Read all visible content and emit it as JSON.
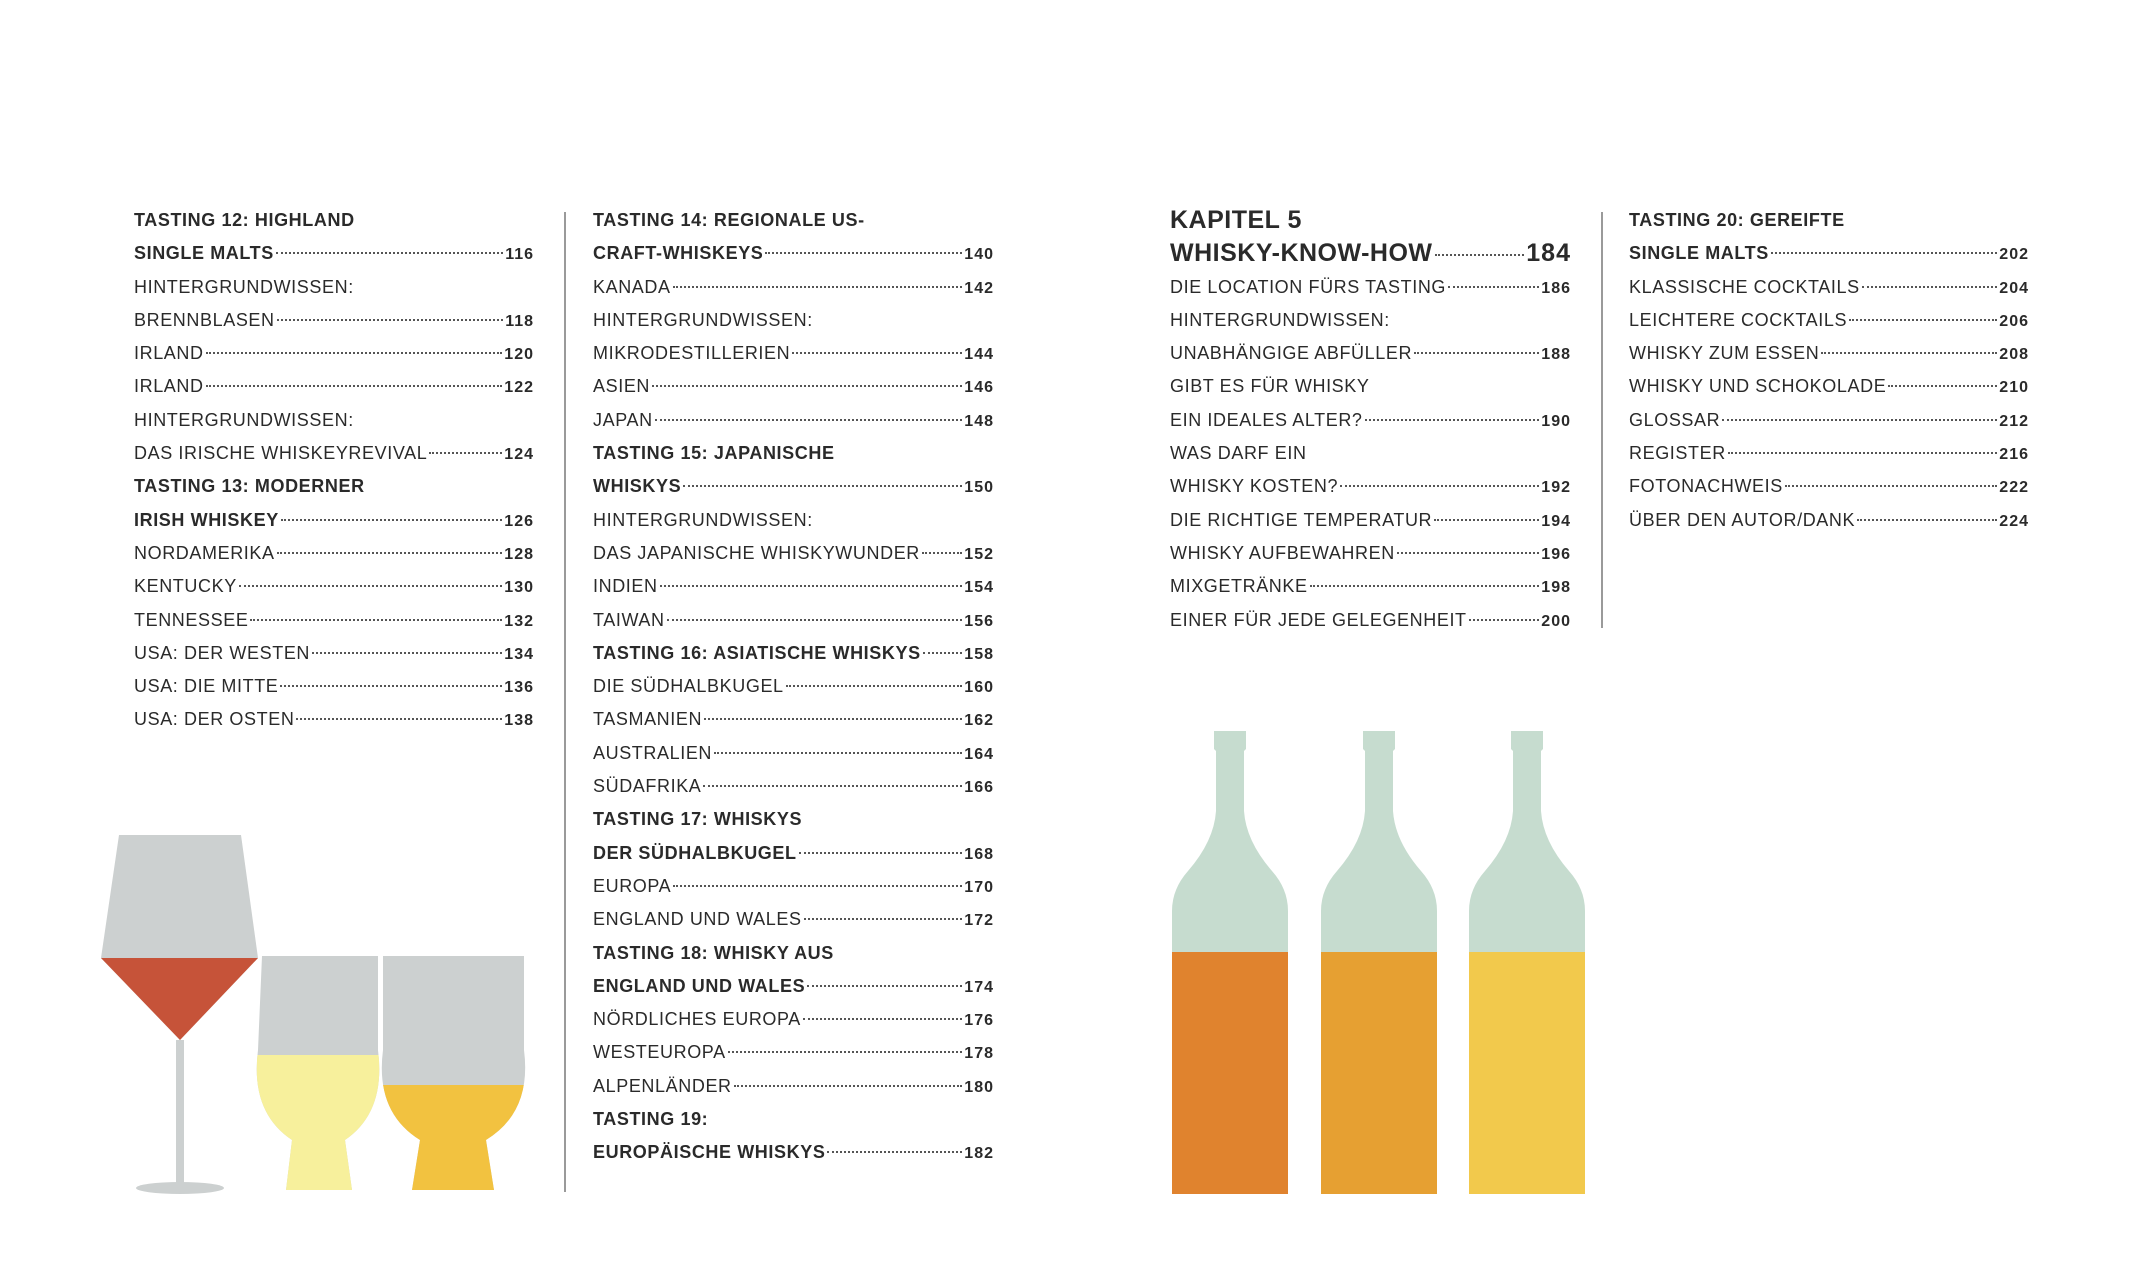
{
  "columns": [
    {
      "rows": [
        {
          "text": "TASTING 12: HIGHLAND",
          "bold": true
        },
        {
          "text": "SINGLE MALTS",
          "page": 116,
          "bold": true
        },
        {
          "text": "HINTERGRUNDWISSEN:"
        },
        {
          "text": "BRENNBLASEN",
          "page": 118
        },
        {
          "text": "IRLAND",
          "page": 120
        },
        {
          "text": "IRLAND",
          "page": 122
        },
        {
          "text": "HINTERGRUNDWISSEN:"
        },
        {
          "text": "DAS IRISCHE WHISKEYREVIVAL",
          "page": 124
        },
        {
          "text": "TASTING 13: MODERNER",
          "bold": true
        },
        {
          "text": "IRISH WHISKEY",
          "page": 126,
          "bold": true
        },
        {
          "text": "NORDAMERIKA",
          "page": 128
        },
        {
          "text": "KENTUCKY",
          "page": 130
        },
        {
          "text": "TENNESSEE",
          "page": 132
        },
        {
          "text": "USA: DER WESTEN",
          "page": 134
        },
        {
          "text": "USA: DIE MITTE",
          "page": 136
        },
        {
          "text": "USA: DER OSTEN",
          "page": 138
        }
      ]
    },
    {
      "rows": [
        {
          "text": "TASTING 14: REGIONALE US-",
          "bold": true
        },
        {
          "text": "CRAFT-WHISKEYS",
          "page": 140,
          "bold": true
        },
        {
          "text": "KANADA",
          "page": 142
        },
        {
          "text": "HINTERGRUNDWISSEN:"
        },
        {
          "text": "MIKRODESTILLERIEN",
          "page": 144
        },
        {
          "text": "ASIEN",
          "page": 146
        },
        {
          "text": "JAPAN",
          "page": 148
        },
        {
          "text": "TASTING 15: JAPANISCHE",
          "bold": true
        },
        {
          "text": "WHISKYS",
          "page": 150,
          "bold": true
        },
        {
          "text": "HINTERGRUNDWISSEN:"
        },
        {
          "text": "DAS JAPANISCHE WHISKYWUNDER",
          "page": 152
        },
        {
          "text": "INDIEN",
          "page": 154
        },
        {
          "text": "TAIWAN",
          "page": 156
        },
        {
          "text": "TASTING 16: ASIATISCHE WHISKYS",
          "page": 158,
          "bold": true
        },
        {
          "text": "DIE SÜDHALBKUGEL",
          "page": 160
        },
        {
          "text": "TASMANIEN",
          "page": 162
        },
        {
          "text": "AUSTRALIEN",
          "page": 164
        },
        {
          "text": "SÜDAFRIKA",
          "page": 166
        },
        {
          "text": "TASTING 17: WHISKYS",
          "bold": true
        },
        {
          "text": "DER SÜDHALBKUGEL",
          "page": 168,
          "bold": true
        },
        {
          "text": "EUROPA",
          "page": 170
        },
        {
          "text": "ENGLAND UND WALES",
          "page": 172
        },
        {
          "text": "TASTING 18: WHISKY AUS",
          "bold": true
        },
        {
          "text": "ENGLAND UND WALES",
          "page": 174,
          "bold": true
        },
        {
          "text": "NÖRDLICHES EUROPA",
          "page": 176
        },
        {
          "text": "WESTEUROPA",
          "page": 178
        },
        {
          "text": "ALPENLÄNDER",
          "page": 180
        },
        {
          "text": "TASTING 19:",
          "bold": true
        },
        {
          "text": "EUROPÄISCHE WHISKYS",
          "page": 182,
          "bold": true
        }
      ]
    },
    {
      "heading": {
        "label": "KAPITEL 5",
        "title": "WHISKY-KNOW-HOW",
        "page": 184
      },
      "rows": [
        {
          "text": "DIE LOCATION FÜRS TASTING",
          "page": 186
        },
        {
          "text": "HINTERGRUNDWISSEN:"
        },
        {
          "text": "UNABHÄNGIGE ABFÜLLER",
          "page": 188
        },
        {
          "text": "GIBT ES FÜR WHISKY"
        },
        {
          "text": "EIN IDEALES ALTER?",
          "page": 190
        },
        {
          "text": "WAS DARF EIN"
        },
        {
          "text": "WHISKY KOSTEN?",
          "page": 192
        },
        {
          "text": "DIE RICHTIGE TEMPERATUR",
          "page": 194
        },
        {
          "text": "WHISKY AUFBEWAHREN",
          "page": 196
        },
        {
          "text": "MIXGETRÄNKE",
          "page": 198
        },
        {
          "text": "EINER FÜR JEDE GELEGENHEIT",
          "page": 200
        }
      ]
    },
    {
      "rows": [
        {
          "text": "TASTING 20: GEREIFTE",
          "bold": true
        },
        {
          "text": "SINGLE MALTS",
          "page": 202,
          "bold": true
        },
        {
          "text": "KLASSISCHE COCKTAILS",
          "page": 204
        },
        {
          "text": "LEICHTERE COCKTAILS",
          "page": 206
        },
        {
          "text": "WHISKY ZUM ESSEN",
          "page": 208
        },
        {
          "text": "WHISKY UND SCHOKOLADE",
          "page": 210
        },
        {
          "text": "GLOSSAR",
          "page": 212
        },
        {
          "text": "REGISTER",
          "page": 216
        },
        {
          "text": "FOTONACHWEIS",
          "page": 222
        },
        {
          "text": "ÜBER DEN AUTOR/DANK",
          "page": 224
        }
      ]
    }
  ]
}
